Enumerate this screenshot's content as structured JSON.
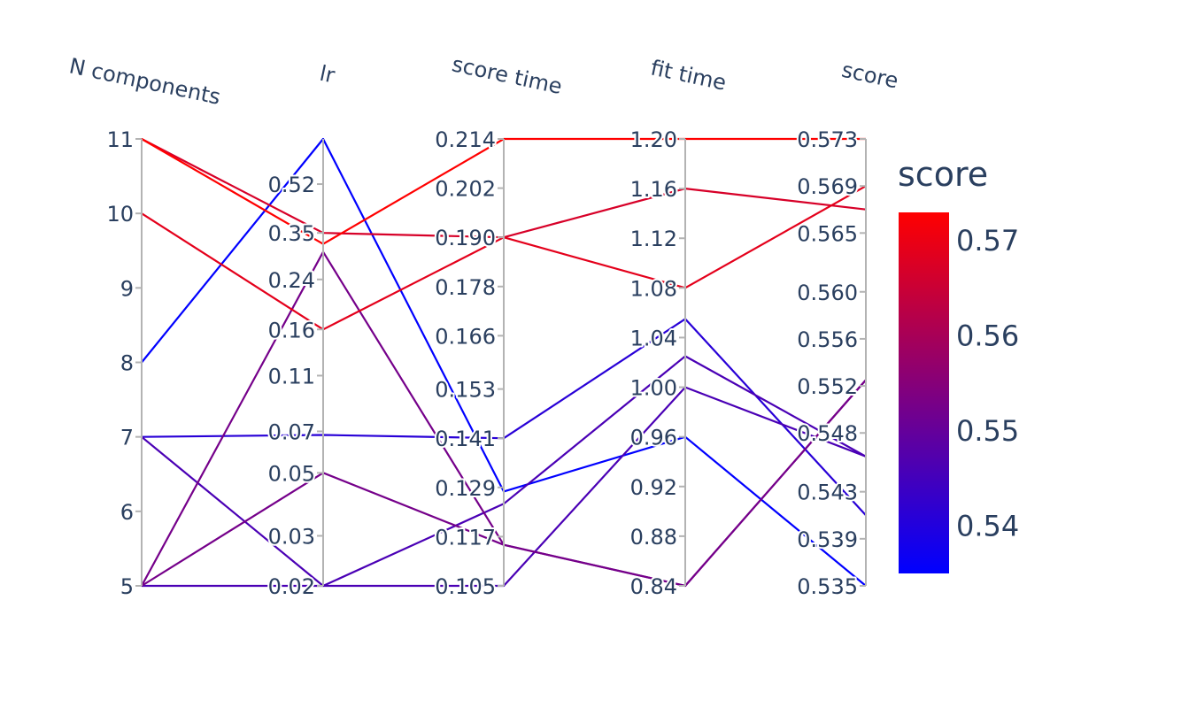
{
  "chart_data": {
    "type": "parallel_coordinates",
    "dimensions": [
      {
        "label": "N components",
        "range": [
          5,
          11
        ],
        "ticks": [
          "5",
          "6",
          "7",
          "8",
          "9",
          "10",
          "11"
        ],
        "scale": "linear"
      },
      {
        "label": "lr",
        "ticks": [
          "0.02",
          "0.03",
          "0.05",
          "0.07",
          "0.11",
          "0.16",
          "0.24",
          "0.35",
          "0.52"
        ],
        "scale": "log",
        "range": [
          0.02,
          0.75
        ]
      },
      {
        "label": "score time",
        "range": [
          0.105,
          0.214
        ],
        "ticks": [
          "0.105",
          "0.117",
          "0.129",
          "0.141",
          "0.153",
          "0.166",
          "0.178",
          "0.190",
          "0.202",
          "0.214"
        ],
        "scale": "linear"
      },
      {
        "label": "fit time",
        "range": [
          0.84,
          1.2
        ],
        "ticks": [
          "0.84",
          "0.88",
          "0.92",
          "0.96",
          "1.00",
          "1.04",
          "1.08",
          "1.12",
          "1.16",
          "1.20"
        ],
        "scale": "linear"
      },
      {
        "label": "score",
        "range": [
          0.535,
          0.573
        ],
        "ticks": [
          "0.535",
          "0.539",
          "0.543",
          "0.548",
          "0.552",
          "0.556",
          "0.560",
          "0.565",
          "0.569",
          "0.573"
        ],
        "scale": "linear"
      }
    ],
    "lines": [
      {
        "values": [
          11,
          0.32,
          0.214,
          1.2,
          0.573
        ]
      },
      {
        "values": [
          11,
          0.35,
          0.19,
          1.16,
          0.567
        ]
      },
      {
        "values": [
          10,
          0.16,
          0.19,
          1.08,
          0.569
        ]
      },
      {
        "values": [
          8,
          0.75,
          0.128,
          0.96,
          0.535
        ]
      },
      {
        "values": [
          7,
          0.068,
          0.141,
          1.055,
          0.541
        ]
      },
      {
        "values": [
          7,
          0.02,
          0.105,
          1.0,
          0.546
        ]
      },
      {
        "values": [
          5,
          0.3,
          0.115,
          0.84,
          0.5525
        ]
      },
      {
        "values": [
          5,
          0.02,
          0.125,
          1.025,
          0.546
        ]
      },
      {
        "values": [
          5,
          0.05,
          0.115,
          0.84,
          0.5525
        ]
      }
    ],
    "colorbar": {
      "title": "score",
      "ticks": [
        "0.57",
        "0.56",
        "0.55",
        "0.54"
      ],
      "tick_values": [
        0.57,
        0.56,
        0.55,
        0.54
      ],
      "range": [
        0.535,
        0.573
      ],
      "colorscale": [
        "#0000ff",
        "#ff0000"
      ]
    }
  }
}
